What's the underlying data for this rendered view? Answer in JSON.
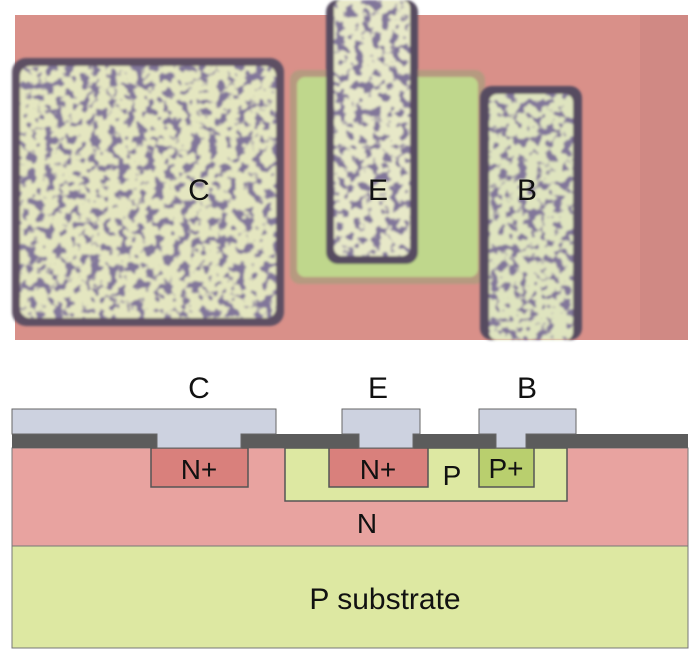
{
  "photo": {
    "labels": {
      "collector": "C",
      "emitter": "E",
      "base": "B"
    }
  },
  "cross_section": {
    "terminals": {
      "collector": "C",
      "emitter": "E",
      "base": "B"
    },
    "regions": {
      "collector_contact": "N+",
      "emitter": "N+",
      "base_region": "P",
      "base_contact": "P+",
      "collector_region": "N",
      "substrate": "P substrate"
    }
  },
  "colors": {
    "n_region": "#e8a3a0",
    "p_region": "#dde8a2",
    "n_plus": "#d9807c",
    "p_plus": "#b9cf6e",
    "metal": "#cdd2e0",
    "oxide": "#5c5c5c"
  }
}
